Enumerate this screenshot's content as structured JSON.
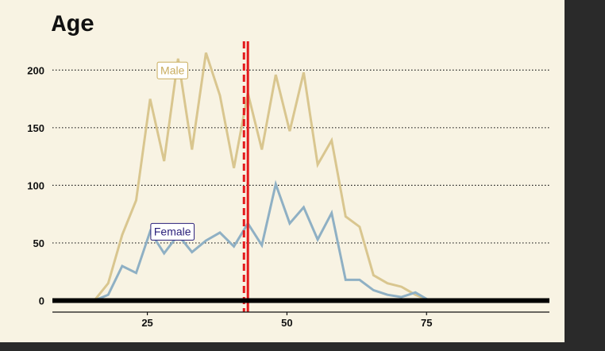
{
  "chart_data": {
    "type": "line",
    "title": "Age",
    "xlabel": "",
    "ylabel": "",
    "xlim": [
      8,
      97
    ],
    "ylim": [
      -10,
      225
    ],
    "x_ticks": [
      25,
      50,
      75
    ],
    "y_ticks": [
      0,
      50,
      100,
      150,
      200
    ],
    "grid": "horizontal dotted",
    "series": [
      {
        "name": "Male",
        "color": "#d9c68f",
        "x": [
          15.5,
          18,
          20.5,
          23,
          25.5,
          28,
          30.5,
          33,
          35.5,
          38,
          40.5,
          43,
          45.5,
          48,
          50.5,
          53,
          55.5,
          58,
          60.5,
          63,
          65.5,
          68,
          70.5,
          73,
          75.5
        ],
        "values": [
          0,
          15,
          57,
          87,
          175,
          121,
          210,
          131,
          215,
          178,
          115,
          180,
          131,
          196,
          147,
          198,
          118,
          139,
          73,
          64,
          22,
          15,
          12,
          5,
          0
        ]
      },
      {
        "name": "Female",
        "color": "#8fb0c4",
        "x": [
          15.5,
          18,
          20.5,
          23,
          25.5,
          28,
          30.5,
          33,
          35.5,
          38,
          40.5,
          43,
          45.5,
          48,
          50.5,
          53,
          55.5,
          58,
          60.5,
          63,
          65.5,
          68,
          70.5,
          73,
          75.5
        ],
        "values": [
          0,
          5,
          30,
          24,
          60,
          41,
          57,
          42,
          52,
          59,
          47,
          67,
          48,
          101,
          67,
          81,
          53,
          76,
          18,
          18,
          9,
          5,
          3,
          7,
          0
        ]
      }
    ],
    "series_labels": [
      {
        "text": "Male",
        "x": 29.5,
        "y": 200,
        "color": "#c9ad5f"
      },
      {
        "text": "Female",
        "x": 29.5,
        "y": 60,
        "color": "#2a1f7a"
      }
    ],
    "vertical_lines": [
      {
        "x": 42.3,
        "style": "dashed",
        "color": "#e31a1c"
      },
      {
        "x": 43.0,
        "style": "solid",
        "color": "#e31a1c"
      }
    ],
    "baseline": {
      "y": 0,
      "color": "#000000"
    }
  }
}
